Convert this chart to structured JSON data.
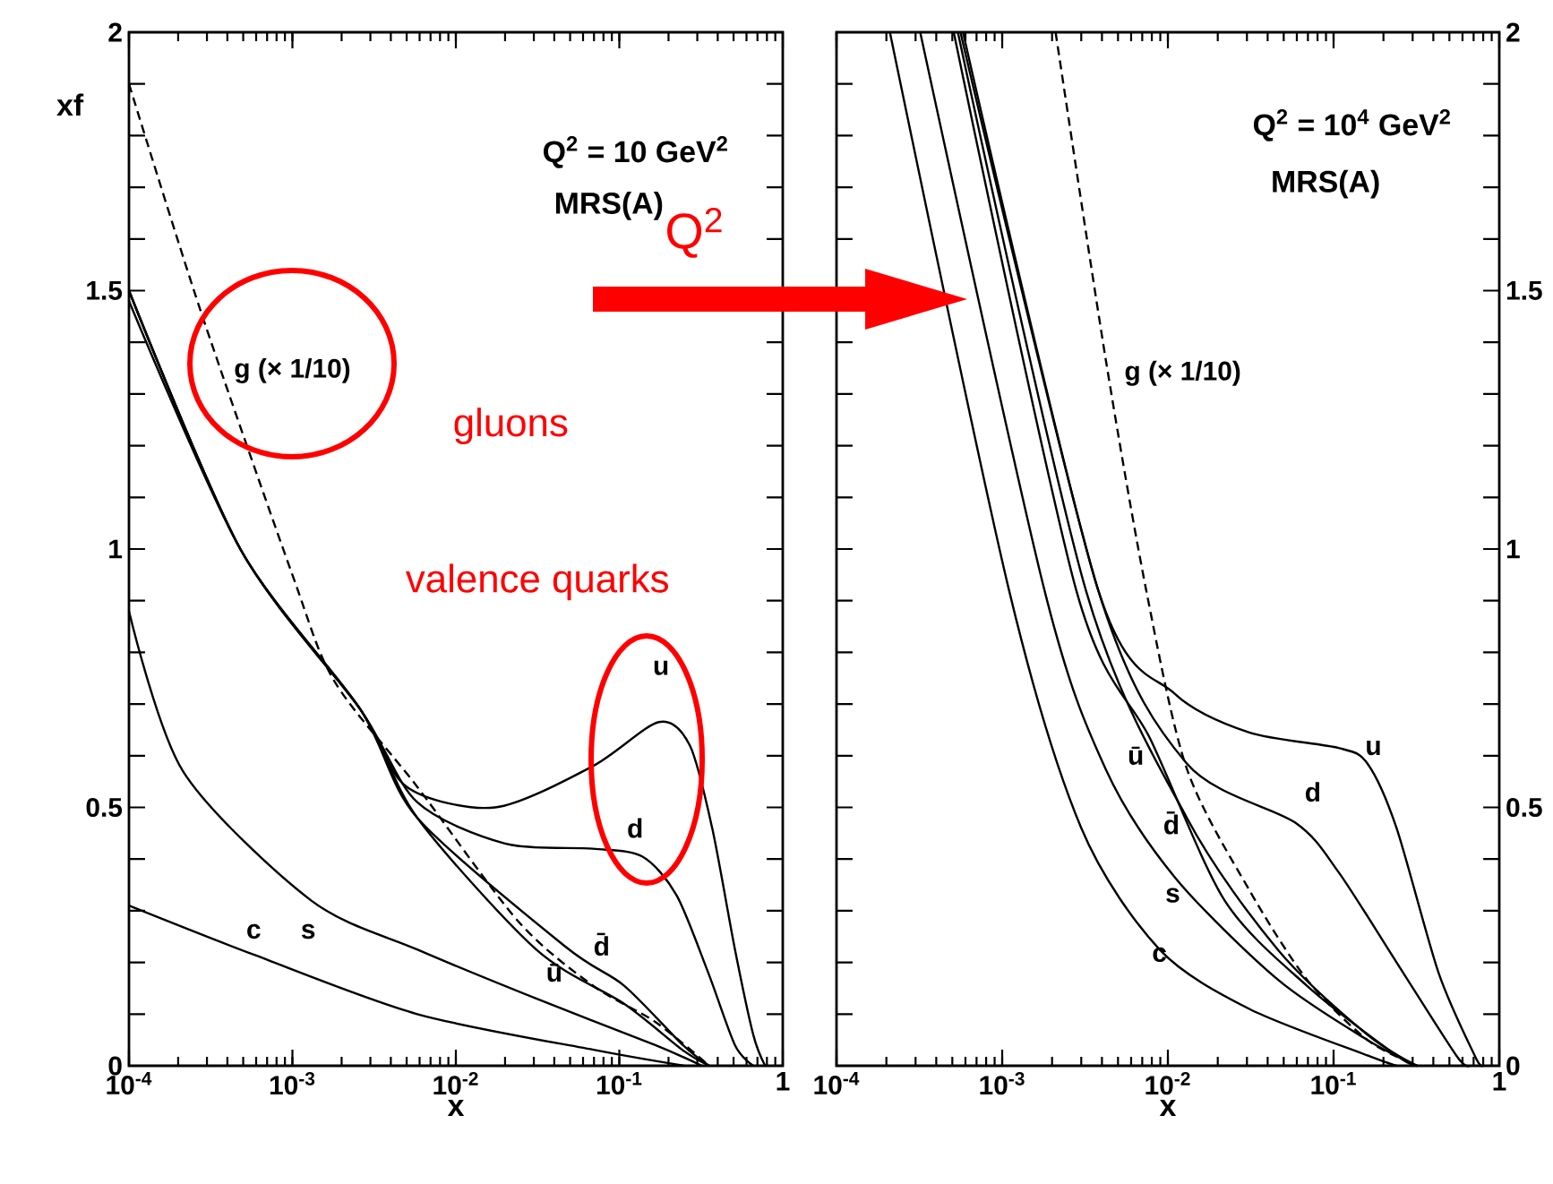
{
  "chart_data": [
    {
      "type": "line",
      "log": "x",
      "xlabel": "x",
      "ylabel": "xf",
      "xlim": [
        0.0001,
        1
      ],
      "ylim": [
        0,
        2
      ],
      "xticks": [
        {
          "value": 0.0001,
          "label": "10$^{-4}$"
        },
        {
          "value": 0.001,
          "label": "10$^{-3}$"
        },
        {
          "value": 0.01,
          "label": "10$^{-2}$"
        },
        {
          "value": 0.1,
          "label": "10$^{-1}$"
        },
        1
      ],
      "yticks": [
        0,
        {
          "value": 0.1,
          "label": null
        },
        {
          "value": 0.2,
          "label": null
        },
        {
          "value": 0.3,
          "label": null
        },
        {
          "value": 0.4,
          "label": null
        },
        0.5,
        {
          "value": 0.6,
          "label": null
        },
        {
          "value": 0.7,
          "label": null
        },
        {
          "value": 0.8,
          "label": null
        },
        {
          "value": 0.9,
          "label": null
        },
        1,
        {
          "value": 1.1,
          "label": null
        },
        {
          "value": 1.2,
          "label": null
        },
        {
          "value": 1.3,
          "label": null
        },
        {
          "value": 1.4,
          "label": null
        },
        1.5,
        {
          "value": 1.6,
          "label": null
        },
        {
          "value": 1.7,
          "label": null
        },
        {
          "value": 1.8,
          "label": null
        },
        {
          "value": 1.9,
          "label": null
        },
        2
      ],
      "annotations": [
        "Q$^{2}$ = 10 GeV$^{2}$",
        "MRS(A)",
        "gluons",
        "valence quarks",
        "Q$^{2}$"
      ],
      "series": [
        {
          "name": "u",
          "color": "#000000",
          "line_style": "solid",
          "x": [
            0.0001,
            0.00048,
            0.0026,
            0.005,
            0.0174,
            0.069,
            0.174,
            0.27,
            0.37,
            0.51,
            0.66,
            0.78
          ],
          "values": [
            1.5,
            1.0,
            0.69,
            0.54,
            0.5,
            0.58,
            0.665,
            0.62,
            0.46,
            0.225,
            0.06,
            0
          ]
        },
        {
          "name": "d",
          "color": "#000000",
          "line_style": "solid",
          "x": [
            0.0001,
            0.00048,
            0.0026,
            0.0058,
            0.02,
            0.069,
            0.138,
            0.224,
            0.35,
            0.51,
            0.66
          ],
          "values": [
            1.5,
            1.0,
            0.69,
            0.51,
            0.43,
            0.42,
            0.405,
            0.33,
            0.18,
            0.04,
            0
          ]
        },
        {
          "name": "ū",
          "color": "#000000",
          "line_style": "solid",
          "x": [
            0.0001,
            0.00048,
            0.0026,
            0.0058,
            0.031,
            0.107,
            0.245,
            0.355
          ],
          "values": [
            1.48,
            1.0,
            0.69,
            0.48,
            0.225,
            0.12,
            0.03,
            0
          ]
        },
        {
          "name": "d̄",
          "color": "#000000",
          "line_style": "solid",
          "x": [
            0.0001,
            0.00048,
            0.0026,
            0.0058,
            0.047,
            0.107,
            0.245,
            0.355
          ],
          "values": [
            1.5,
            1.0,
            0.69,
            0.48,
            0.23,
            0.155,
            0.04,
            0
          ]
        },
        {
          "name": "s",
          "color": "#000000",
          "line_style": "solid",
          "x": [
            0.0001,
            0.000214,
            0.0013,
            0.0058,
            0.031,
            0.166,
            0.32
          ],
          "values": [
            0.88,
            0.57,
            0.32,
            0.225,
            0.13,
            0.04,
            0
          ]
        },
        {
          "name": "c",
          "color": "#000000",
          "line_style": "solid",
          "x": [
            0.0001,
            0.00058,
            0.0058,
            0.072,
            0.25
          ],
          "values": [
            0.31,
            0.215,
            0.1,
            0.03,
            0
          ]
        },
        {
          "name": "g (× 1/10)",
          "color": "#000000",
          "line_style": "dashed",
          "x": [
            0.0001,
            0.000275,
            0.001,
            0.0018,
            0.0058,
            0.024,
            0.069,
            0.166,
            0.355
          ],
          "values": [
            1.9,
            1.46,
            0.95,
            0.745,
            0.54,
            0.28,
            0.155,
            0.085,
            0
          ]
        }
      ]
    },
    {
      "type": "line",
      "log": "x",
      "xlabel": "x",
      "xlim": [
        0.0001,
        1
      ],
      "ylim": [
        0,
        2
      ],
      "xticks": [
        {
          "value": 0.0001,
          "label": "10$^{-4}$"
        },
        {
          "value": 0.001,
          "label": "10$^{-3}$"
        },
        {
          "value": 0.01,
          "label": "10$^{-2}$"
        },
        {
          "value": 0.1,
          "label": "10$^{-1}$"
        },
        1
      ],
      "yticks": [
        0,
        {
          "value": 0.1,
          "label": null
        },
        {
          "value": 0.2,
          "label": null
        },
        {
          "value": 0.3,
          "label": null
        },
        {
          "value": 0.4,
          "label": null
        },
        0.5,
        {
          "value": 0.6,
          "label": null
        },
        {
          "value": 0.7,
          "label": null
        },
        {
          "value": 0.8,
          "label": null
        },
        {
          "value": 0.9,
          "label": null
        },
        1,
        {
          "value": 1.1,
          "label": null
        },
        {
          "value": 1.2,
          "label": null
        },
        {
          "value": 1.3,
          "label": null
        },
        {
          "value": 1.4,
          "label": null
        },
        1.5,
        {
          "value": 1.6,
          "label": null
        },
        {
          "value": 1.7,
          "label": null
        },
        {
          "value": 1.8,
          "label": null
        },
        {
          "value": 1.9,
          "label": null
        },
        2
      ],
      "annotations": [
        "Q$^{2}$ = 10$^{4}$ GeV$^{2}$",
        "MRS(A)"
      ],
      "series": [
        {
          "name": "u",
          "color": "#000000",
          "line_style": "solid",
          "x": [
            0.00058,
            0.0038,
            0.011,
            0.031,
            0.107,
            0.16,
            0.24,
            0.43,
            0.71,
            0.79
          ],
          "values": [
            2,
            0.92,
            0.72,
            0.645,
            0.615,
            0.585,
            0.46,
            0.18,
            0.02,
            0
          ]
        },
        {
          "name": "d",
          "color": "#000000",
          "line_style": "solid",
          "x": [
            0.00056,
            0.0038,
            0.013,
            0.059,
            0.107,
            0.24,
            0.55,
            0.66
          ],
          "values": [
            2,
            0.92,
            0.585,
            0.47,
            0.375,
            0.2,
            0.02,
            0
          ]
        },
        {
          "name": "ū",
          "color": "#000000",
          "line_style": "solid",
          "x": [
            0.00051,
            0.0028,
            0.0079,
            0.022,
            0.069,
            0.24,
            0.32
          ],
          "values": [
            2,
            0.92,
            0.63,
            0.32,
            0.155,
            0.02,
            0
          ]
        },
        {
          "name": "d̄",
          "color": "#000000",
          "line_style": "solid",
          "x": [
            0.00054,
            0.0032,
            0.013,
            0.046,
            0.16,
            0.32
          ],
          "values": [
            2,
            0.92,
            0.48,
            0.225,
            0.06,
            0
          ]
        },
        {
          "name": "s",
          "color": "#000000",
          "line_style": "solid",
          "x": [
            0.00032,
            0.0018,
            0.0042,
            0.011,
            0.046,
            0.16,
            0.32
          ],
          "values": [
            2,
            0.92,
            0.575,
            0.365,
            0.167,
            0.05,
            0
          ]
        },
        {
          "name": "c",
          "color": "#000000",
          "line_style": "solid",
          "x": [
            0.00021,
            0.0011,
            0.003,
            0.0089,
            0.031,
            0.16,
            0.24
          ],
          "values": [
            2,
            0.92,
            0.46,
            0.225,
            0.11,
            0.02,
            0
          ]
        },
        {
          "name": "g (× 1/10)",
          "color": "#000000",
          "line_style": "dashed",
          "x": [
            0.0021,
            0.0042,
            0.0074,
            0.013,
            0.031,
            0.069,
            0.16,
            0.32
          ],
          "values": [
            2,
            1.37,
            0.92,
            0.575,
            0.34,
            0.167,
            0.05,
            0
          ]
        }
      ]
    }
  ]
}
